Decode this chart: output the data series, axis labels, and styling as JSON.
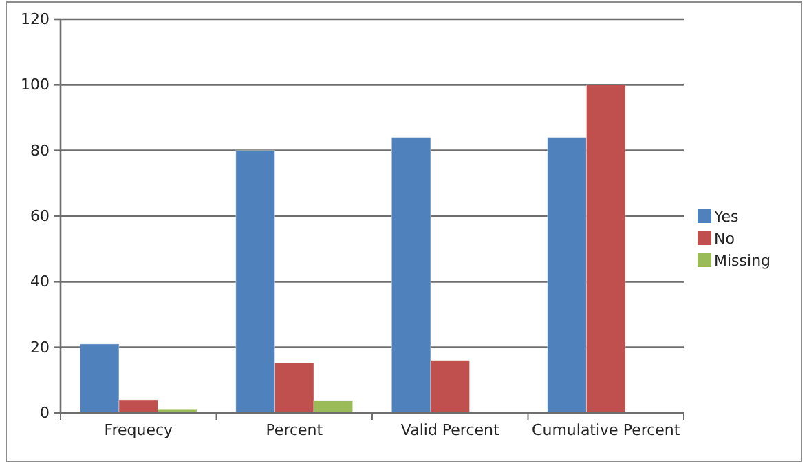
{
  "chart_data": {
    "type": "bar",
    "categories": [
      "Frequecy",
      "Percent",
      "Valid Percent",
      "Cumulative Percent"
    ],
    "series": [
      {
        "name": "Yes",
        "color": "#4f81bd",
        "values": [
          21,
          80,
          84,
          84
        ]
      },
      {
        "name": "No",
        "color": "#c0504d",
        "values": [
          4,
          15.3,
          16,
          100
        ]
      },
      {
        "name": "Missing",
        "color": "#9bbb59",
        "values": [
          1,
          3.8,
          null,
          null
        ]
      }
    ],
    "ylim": [
      0,
      120
    ],
    "yticks": [
      0,
      20,
      40,
      60,
      80,
      100,
      120
    ],
    "grid": "y",
    "legend": "right"
  }
}
